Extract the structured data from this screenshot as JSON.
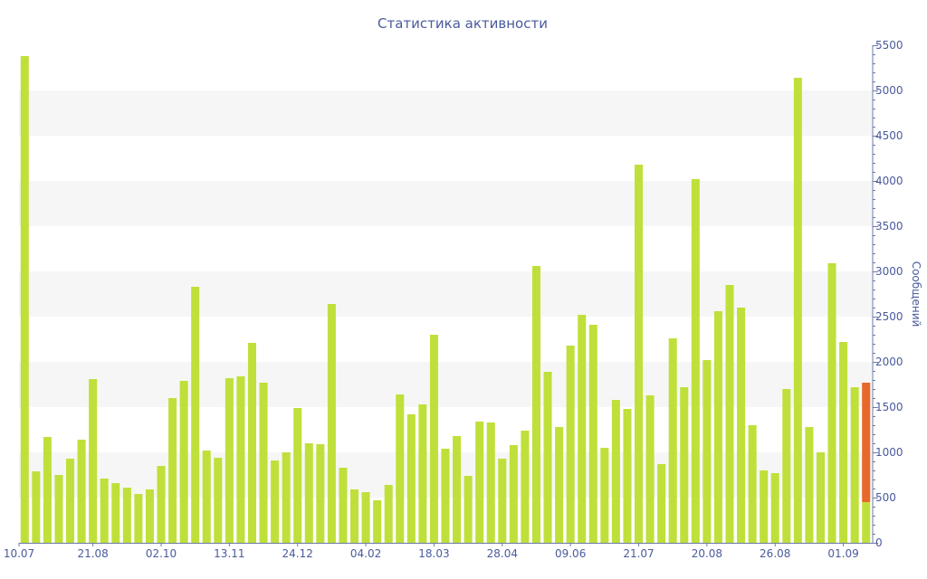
{
  "chart_data": {
    "type": "bar",
    "title": "Статистика активности",
    "ylabel": "Сообщений",
    "xlabel": "",
    "ylim": [
      0,
      5500
    ],
    "y_ticks": [
      0,
      500,
      1000,
      1500,
      2000,
      2500,
      3000,
      3500,
      4000,
      4500,
      5000,
      5500
    ],
    "y_axis_side": "right",
    "grid": "alternating horizontal bands",
    "x_tick_labels": [
      {
        "index": 0,
        "label": "10.07"
      },
      {
        "index": 6,
        "label": "21.08"
      },
      {
        "index": 12,
        "label": "02.10"
      },
      {
        "index": 18,
        "label": "13.11"
      },
      {
        "index": 24,
        "label": "24.12"
      },
      {
        "index": 30,
        "label": "04.02"
      },
      {
        "index": 36,
        "label": "18.03"
      },
      {
        "index": 42,
        "label": "28.04"
      },
      {
        "index": 48,
        "label": "09.06"
      },
      {
        "index": 54,
        "label": "21.07"
      },
      {
        "index": 60,
        "label": "20.08"
      },
      {
        "index": 66,
        "label": "26.08"
      },
      {
        "index": 72,
        "label": "01.09"
      }
    ],
    "values": [
      5380,
      790,
      1170,
      750,
      930,
      1140,
      1810,
      710,
      660,
      610,
      540,
      590,
      850,
      1600,
      1790,
      2830,
      1020,
      940,
      1820,
      1840,
      2210,
      1770,
      910,
      1000,
      1490,
      1100,
      1090,
      2640,
      830,
      590,
      560,
      470,
      640,
      1640,
      1420,
      1530,
      2300,
      1040,
      1180,
      740,
      1340,
      1330,
      930,
      1080,
      1240,
      3060,
      1890,
      1280,
      2180,
      2520,
      2410,
      1050,
      1580,
      1480,
      4180,
      1630,
      870,
      2260,
      1720,
      4020,
      2020,
      2560,
      2850,
      2600,
      1300,
      800,
      770,
      1700,
      5140,
      1280,
      1000,
      3090,
      2220,
      1720,
      1770
    ],
    "last_bar_segments": [
      {
        "value": 450,
        "color": "#bfe03a"
      },
      {
        "value": 1320,
        "color": "#e8682c"
      }
    ],
    "colors": {
      "bar": "#bfe03a",
      "bar_highlight": "#e8682c",
      "text": "#4a5a9c",
      "band": "#f6f6f6",
      "axis": "#6b7aa8"
    }
  }
}
